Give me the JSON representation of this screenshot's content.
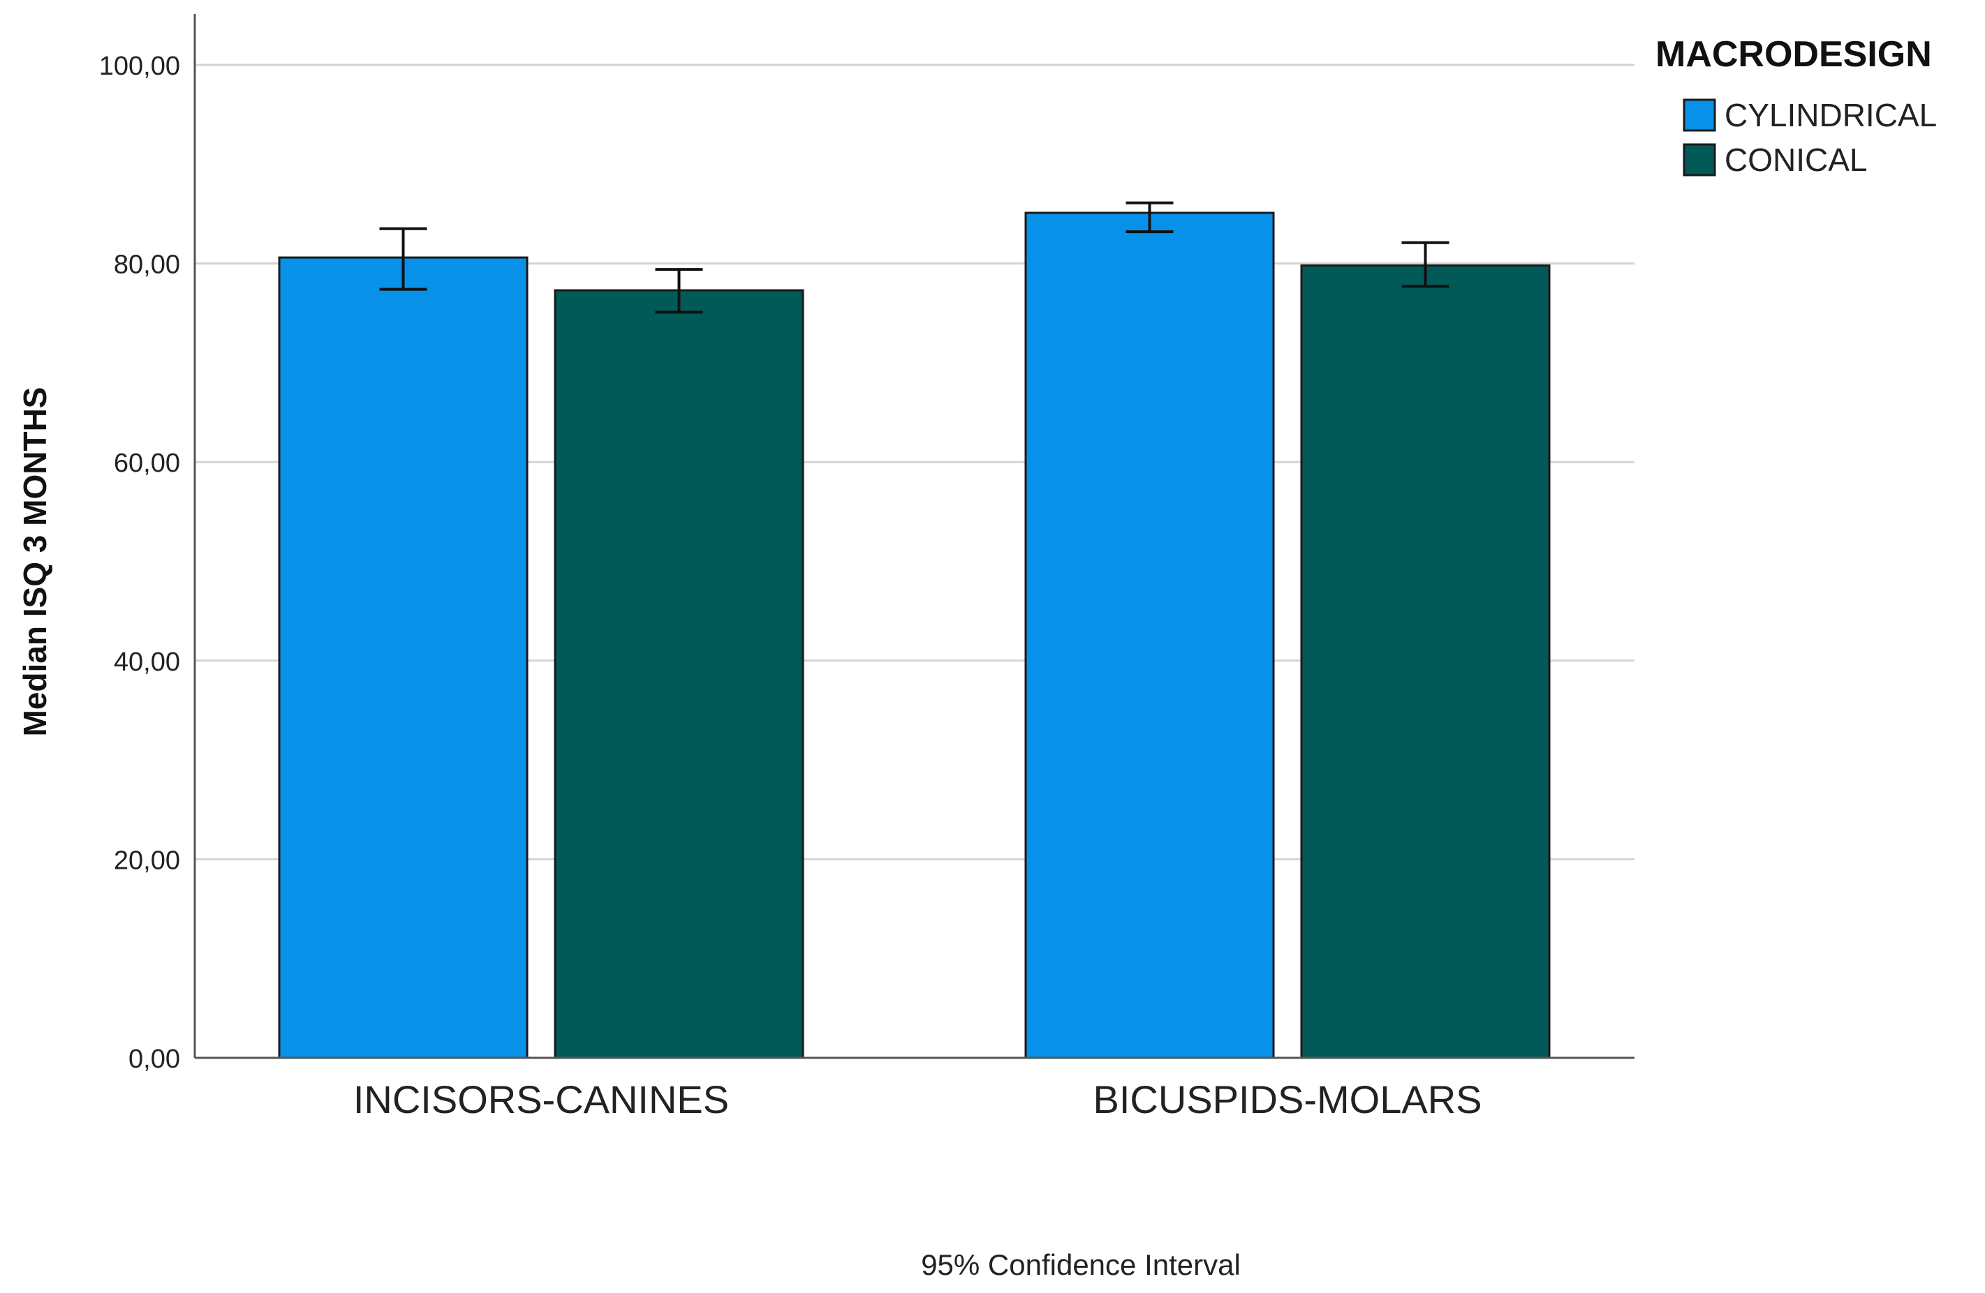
{
  "chart_data": {
    "type": "bar",
    "categories": [
      "INCISORS-CANINES",
      "BICUSPIDS-MOLARS"
    ],
    "series": [
      {
        "name": "CYLINDRICAL",
        "color": "#0891e8",
        "values": [
          80.6,
          85.1
        ],
        "ci_low": [
          77.4,
          83.2
        ],
        "ci_high": [
          83.5,
          86.1
        ]
      },
      {
        "name": "CONICAL",
        "color": "#015a58",
        "values": [
          77.3,
          79.8
        ],
        "ci_low": [
          75.1,
          77.7
        ],
        "ci_high": [
          79.4,
          82.1
        ]
      }
    ],
    "ylabel": "Median ISQ 3 MONTHS",
    "xlabel": "95% Confidence Interval",
    "ylim": [
      0,
      100
    ],
    "yticks": [
      0,
      20,
      40,
      60,
      80,
      100
    ],
    "ytick_labels": [
      "0,00",
      "20,00",
      "40,00",
      "60,00",
      "80,00",
      "100,00"
    ],
    "legend": {
      "title": "MACRODESIGN",
      "placement": "top-right",
      "entries": [
        "CYLINDRICAL",
        "CONICAL"
      ]
    },
    "grid": true,
    "gridline_color": "#d4d4d4",
    "axis_color": "#555555",
    "bar_edge_color": "#1a1a1a"
  }
}
